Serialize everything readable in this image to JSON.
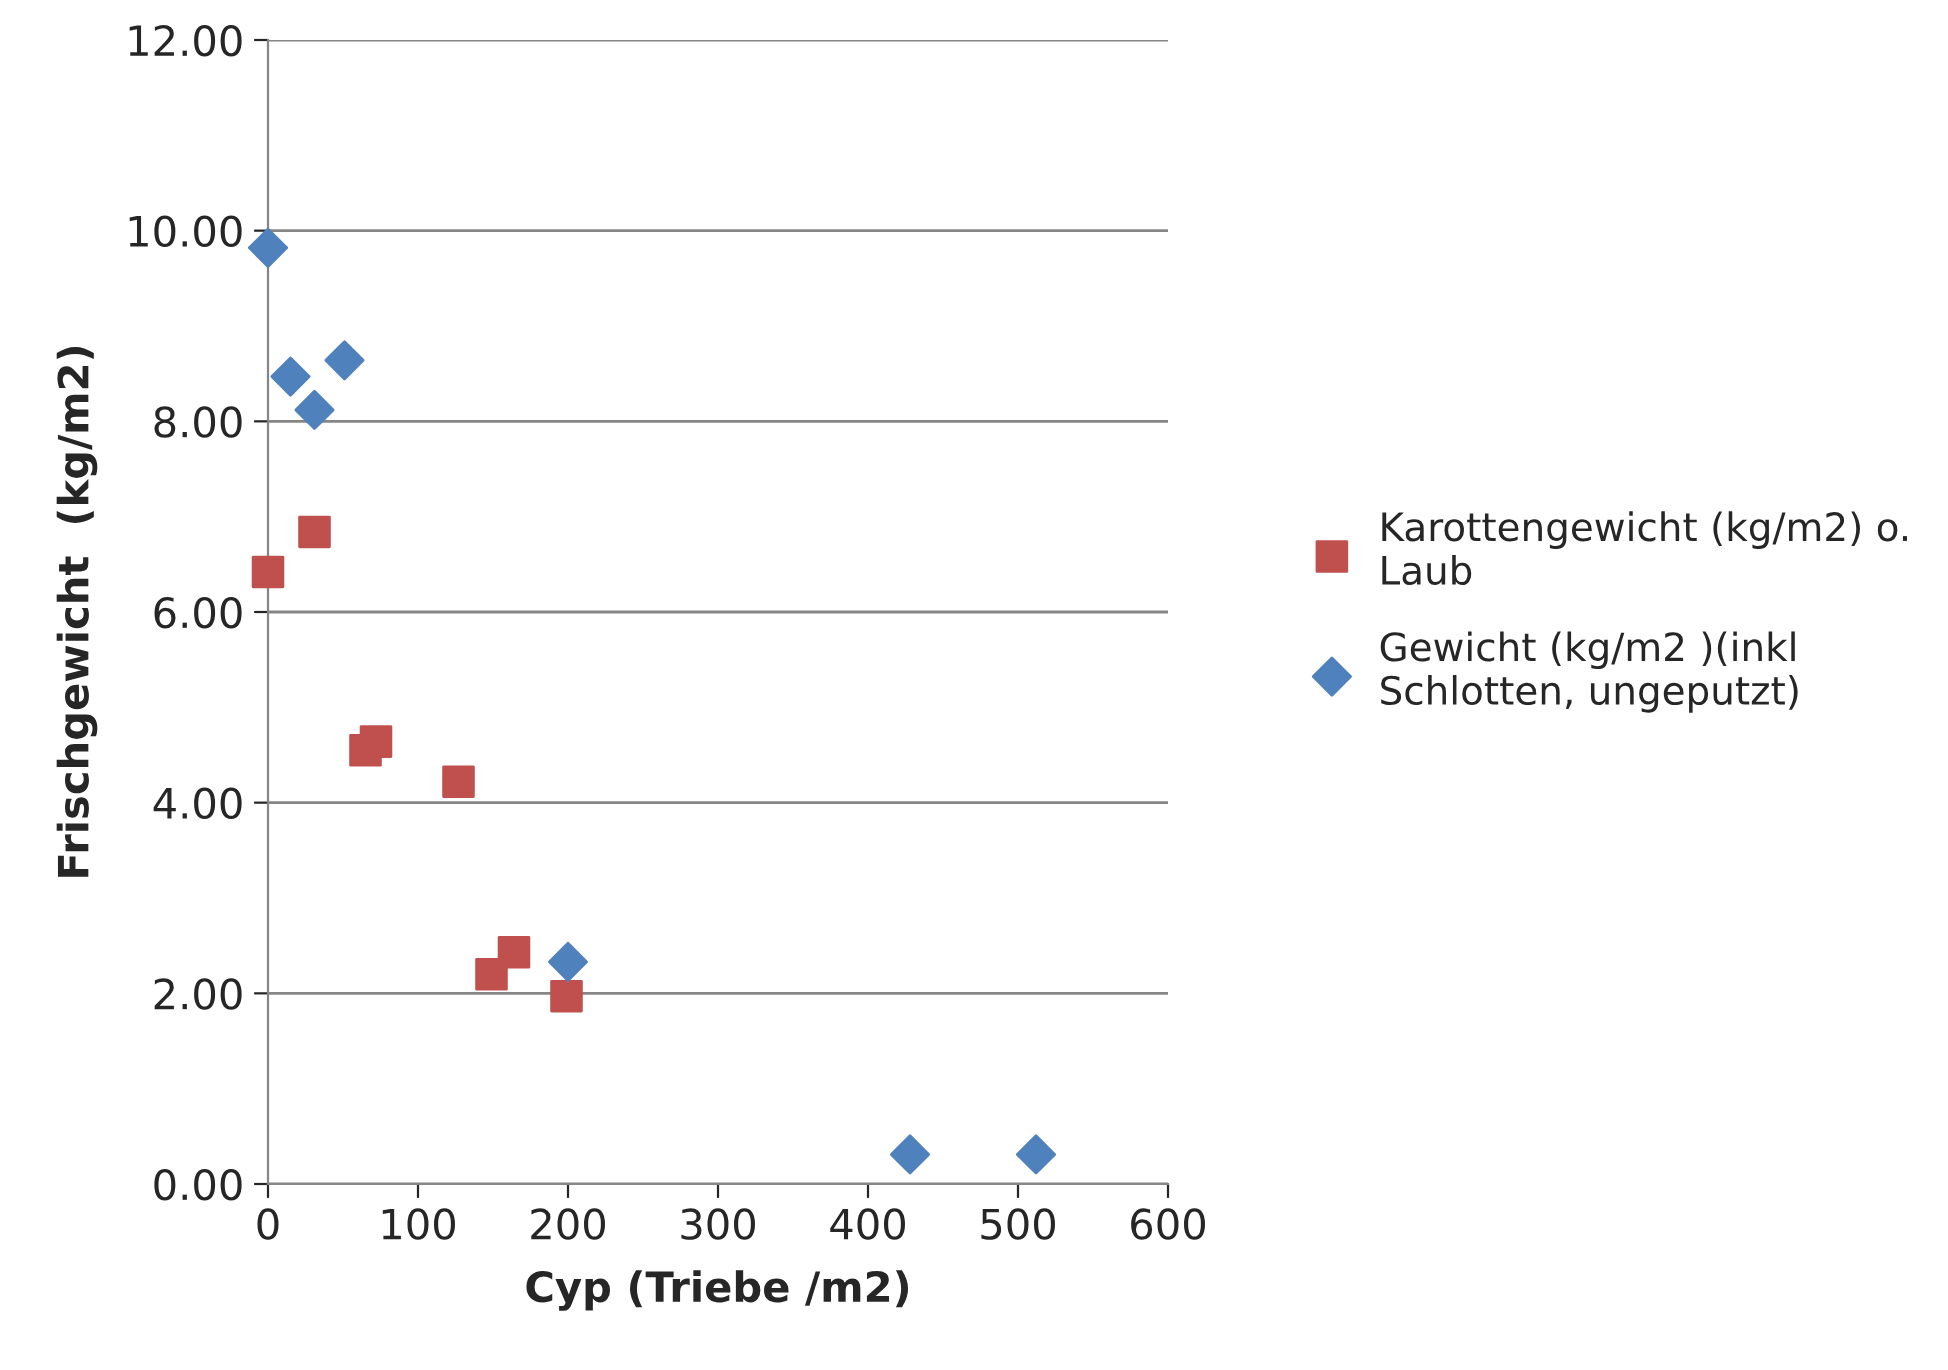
{
  "chart_data": {
    "type": "scatter",
    "xlabel": "Cyp (Triebe /m2)",
    "ylabel": "Frischgewicht  (kg/m2)",
    "xlim": [
      0,
      600
    ],
    "xticks": [
      0,
      100,
      200,
      300,
      400,
      500,
      600
    ],
    "ylim": [
      0,
      12
    ],
    "yticks": [
      {
        "value": 0,
        "label": "0.00"
      },
      {
        "value": 2,
        "label": "2.00"
      },
      {
        "value": 4,
        "label": "4.00"
      },
      {
        "value": 6,
        "label": "6.00"
      },
      {
        "value": 8,
        "label": "8.00"
      },
      {
        "value": 10,
        "label": "10.00"
      },
      {
        "value": 12,
        "label": "12.00"
      }
    ],
    "grid": "y",
    "legend": "right",
    "series": [
      {
        "name": "Karottengewicht (kg/m2) o. Laub",
        "color": "#c0504d",
        "marker": "square",
        "x": [
          0,
          31,
          65,
          72,
          127,
          149,
          164,
          199
        ],
        "values": [
          6.42,
          6.84,
          4.55,
          4.64,
          4.22,
          2.2,
          2.43,
          1.97
        ]
      },
      {
        "name": "Gewicht (kg/m2 )(inkl Schlotten, ungeputzt)",
        "color": "#4f81bd",
        "marker": "diamond",
        "x": [
          0,
          15,
          31,
          51,
          200,
          428,
          512
        ],
        "values": [
          9.82,
          8.47,
          8.12,
          8.64,
          2.33,
          0.31,
          0.31
        ]
      }
    ]
  }
}
